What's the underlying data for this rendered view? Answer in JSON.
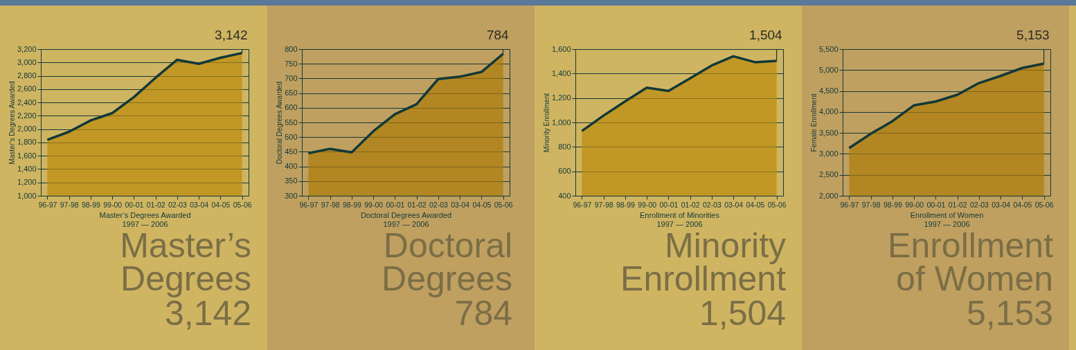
{
  "chart_data": [
    {
      "type": "area",
      "title": "Master’s Degrees",
      "subtitle": "3,142",
      "xlabel": "Master’s Degrees Awarded\n1997 — 2006",
      "ylabel": "Master’s Degrees Awarded",
      "categories": [
        "96-97",
        "97-98",
        "98-99",
        "99-00",
        "00-01",
        "01-02",
        "02-03",
        "03-04",
        "04-05",
        "05-06"
      ],
      "series": [
        {
          "color": "#bb8a0b",
          "values": [
            1840,
            1960,
            2130,
            2240,
            2480,
            2770,
            3040,
            2980,
            3070,
            3142
          ]
        }
      ],
      "ylim": [
        1000,
        3200
      ],
      "yticks": [
        {
          "value": 1000,
          "label": "1,000"
        },
        {
          "value": 1200,
          "label": "1,200"
        },
        {
          "value": 1400,
          "label": "1,400"
        },
        {
          "value": 1600,
          "label": "1,600"
        },
        {
          "value": 1800,
          "label": "1,800"
        },
        {
          "value": 2000,
          "label": "2,000"
        },
        {
          "value": 2200,
          "label": "2,200"
        },
        {
          "value": 2400,
          "label": "2,400"
        },
        {
          "value": 2600,
          "label": "2,600"
        },
        {
          "value": 2800,
          "label": "2,800"
        },
        {
          "value": 3000,
          "label": "3,000"
        },
        {
          "value": 3200,
          "label": "3,200"
        }
      ],
      "grid": "y",
      "annotations": [
        {
          "text": "3,142",
          "x": "05-06",
          "y": 3142
        }
      ]
    },
    {
      "type": "area",
      "title": "Doctoral Degrees",
      "subtitle": "784",
      "xlabel": "Doctoral Degrees Awarded\n1997 — 2006",
      "ylabel": "Doctoral Degrees Awarded",
      "categories": [
        "96-97",
        "97-98",
        "98-99",
        "99-00",
        "00-01",
        "01-02",
        "02-03",
        "03-04",
        "04-05",
        "05-06"
      ],
      "series": [
        {
          "color": "#ac7a08",
          "values": [
            445,
            460,
            448,
            520,
            578,
            612,
            698,
            706,
            722,
            784
          ]
        }
      ],
      "ylim": [
        300,
        800
      ],
      "yticks": [
        300,
        350,
        400,
        450,
        500,
        550,
        600,
        650,
        700,
        750,
        800
      ],
      "grid": "y",
      "annotations": [
        {
          "text": "784",
          "x": "05-06",
          "y": 784
        }
      ]
    },
    {
      "type": "area",
      "title": "Minority Enrollment",
      "subtitle": "1,504",
      "xlabel": "Enrollment of Minorities\n1997 — 2006",
      "ylabel": "Minority Enrollment",
      "categories": [
        "96-97",
        "97-98",
        "98-99",
        "99-00",
        "00-01",
        "01-02",
        "02-03",
        "03-04",
        "04-05",
        "05-06"
      ],
      "series": [
        {
          "color": "#bb8a0b",
          "values": [
            930,
            1056,
            1173,
            1284,
            1257,
            1361,
            1466,
            1541,
            1493,
            1504
          ]
        }
      ],
      "ylim": [
        400,
        1600
      ],
      "yticks": [
        400,
        600,
        800,
        {
          "value": 1000,
          "label": "1,000"
        },
        {
          "value": 1200,
          "label": "1,200"
        },
        {
          "value": 1400,
          "label": "1,400"
        },
        {
          "value": 1600,
          "label": "1,600"
        }
      ],
      "grid": "y",
      "annotations": [
        {
          "text": "1,504",
          "x": "05-06",
          "y": 1504
        }
      ]
    },
    {
      "type": "area",
      "title": "Enrollment of Women",
      "subtitle": "5,153",
      "xlabel": "Enrollment of Women\n1997 — 2006",
      "ylabel": "Female Enrollment",
      "categories": [
        "96-97",
        "97-98",
        "98-99",
        "99-00",
        "00-01",
        "01-02",
        "02-03",
        "03-04",
        "04-05",
        "05-06"
      ],
      "series": [
        {
          "color": "#ac7a08",
          "values": [
            3140,
            3480,
            3780,
            4160,
            4250,
            4410,
            4690,
            4860,
            5050,
            5153
          ]
        }
      ],
      "ylim": [
        2000,
        5500
      ],
      "yticks": [
        {
          "value": 2000,
          "label": "2,000"
        },
        {
          "value": 2500,
          "label": "2,500"
        },
        {
          "value": 3000,
          "label": "3,000"
        },
        {
          "value": 3500,
          "label": "3,500"
        },
        {
          "value": 4000,
          "label": "4,000"
        },
        {
          "value": 4500,
          "label": "4,500"
        },
        {
          "value": 5000,
          "label": "5,000"
        },
        {
          "value": 5500,
          "label": "5,500"
        }
      ],
      "grid": "y",
      "annotations": [
        {
          "text": "5,153",
          "x": "05-06",
          "y": 5153
        }
      ]
    }
  ]
}
